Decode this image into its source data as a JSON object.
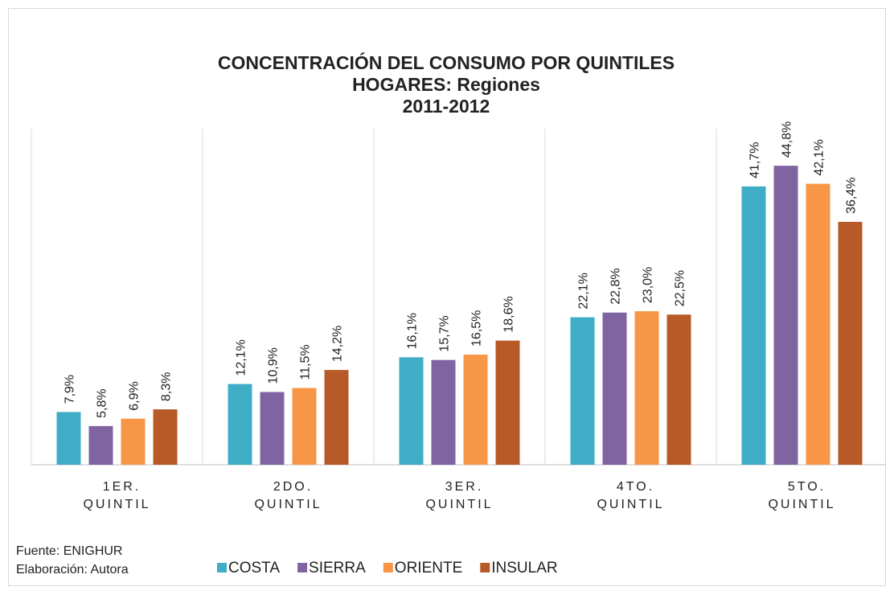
{
  "chart_data": {
    "type": "bar",
    "title": [
      "CONCENTRACIÓN DEL CONSUMO  POR QUINTILES",
      "HOGARES: Regiones",
      "2011-2012"
    ],
    "categories": [
      "1ER. QUINTIL",
      "2DO. QUINTIL",
      "3ER. QUINTIL",
      "4TO. QUINTIL",
      "5TO. QUINTIL"
    ],
    "series": [
      {
        "name": "COSTA",
        "color": "#3fadc6",
        "values": [
          7.9,
          12.1,
          16.1,
          22.1,
          41.7
        ],
        "value_labels": [
          "7,9%",
          "12,1%",
          "16,1%",
          "22,1%",
          "41,7%"
        ]
      },
      {
        "name": "SIERRA",
        "color": "#8064a2",
        "values": [
          5.8,
          10.9,
          15.7,
          22.8,
          44.8
        ],
        "value_labels": [
          "5,8%",
          "10,9%",
          "15,7%",
          "22,8%",
          "44,8%"
        ]
      },
      {
        "name": "ORIENTE",
        "color": "#f79646",
        "values": [
          6.9,
          11.5,
          16.5,
          23.0,
          42.1
        ],
        "value_labels": [
          "6,9%",
          "11,5%",
          "16,5%",
          "23,0%",
          "42,1%"
        ]
      },
      {
        "name": "INSULAR",
        "color": "#b85a28",
        "values": [
          8.3,
          14.2,
          18.6,
          22.5,
          36.4
        ],
        "value_labels": [
          "8,3%",
          "14,2%",
          "18,6%",
          "22,5%",
          "36,4%"
        ]
      }
    ],
    "ylim": [
      0,
      50
    ],
    "source": [
      "Fuente: ENIGHUR",
      "Elaboración: Autora"
    ]
  }
}
